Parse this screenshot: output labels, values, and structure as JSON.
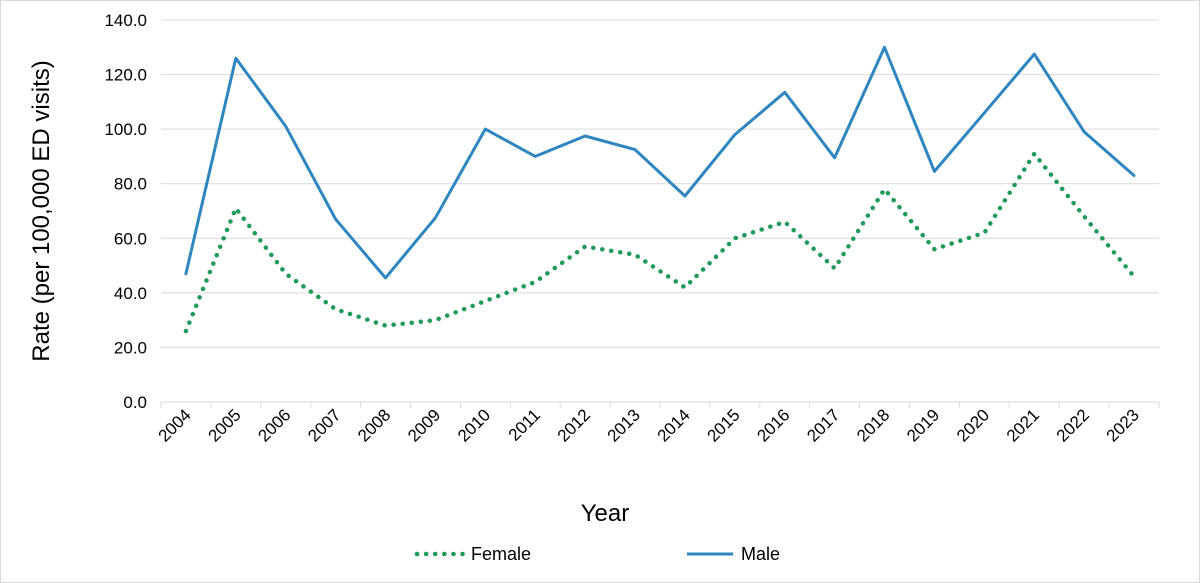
{
  "chart_data": {
    "type": "line",
    "title": "",
    "xlabel": "Year",
    "ylabel": "Rate (per 100,000 ED visits)",
    "ylim": [
      0,
      140
    ],
    "yticks": [
      "0.0",
      "20.0",
      "40.0",
      "60.0",
      "80.0",
      "100.0",
      "120.0",
      "140.0"
    ],
    "grid": "horizontal",
    "legend_position": "bottom",
    "categories": [
      "2004",
      "2005",
      "2006",
      "2007",
      "2008",
      "2009",
      "2010",
      "2011",
      "2012",
      "2013",
      "2014",
      "2015",
      "2016",
      "2017",
      "2018",
      "2019",
      "2020",
      "2021",
      "2022",
      "2023"
    ],
    "series": [
      {
        "name": "Female",
        "color": "#1e9a5a",
        "style": "dotted",
        "values": [
          26,
          71,
          47,
          34,
          28,
          30,
          37,
          44,
          57,
          54,
          42,
          60,
          66,
          49,
          78,
          56,
          62,
          91,
          68,
          46
        ]
      },
      {
        "name": "Male",
        "color": "#2e86c1",
        "style": "solid",
        "values": [
          47,
          126,
          101,
          67,
          45.5,
          67.5,
          100,
          90,
          97.5,
          92.5,
          75.5,
          98,
          113.5,
          89.5,
          130,
          84.5,
          106,
          127.5,
          99,
          83
        ]
      }
    ]
  }
}
